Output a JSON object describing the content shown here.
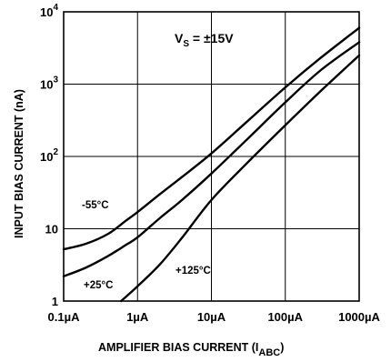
{
  "chart_data": {
    "type": "line",
    "xlabel": "AMPLIFIER BIAS CURRENT (I",
    "xlabel_sub": "ABC",
    "xlabel_close": ")",
    "ylabel": "INPUT BIAS CURRENT (nA)",
    "x_scale": "log",
    "y_scale": "log",
    "x_unit": "µA",
    "y_unit": "nA",
    "xlim": [
      0.1,
      1000
    ],
    "ylim": [
      1,
      10000
    ],
    "grid": true,
    "x_ticks": [
      {
        "value": 0.1,
        "label": "0.1µA"
      },
      {
        "value": 1,
        "label": "1µA"
      },
      {
        "value": 10,
        "label": "10µA"
      },
      {
        "value": 100,
        "label": "100µA"
      },
      {
        "value": 1000,
        "label": "1000µA"
      }
    ],
    "y_ticks": [
      {
        "value": 1,
        "base": "1",
        "exp": ""
      },
      {
        "value": 10,
        "base": "10",
        "exp": ""
      },
      {
        "value": 100,
        "base": "10",
        "exp": "2"
      },
      {
        "value": 1000,
        "base": "10",
        "exp": "3"
      },
      {
        "value": 10000,
        "base": "10",
        "exp": "4"
      }
    ],
    "annotation": {
      "main": "V",
      "sub": "S",
      "rest": " = ±15V"
    },
    "series": [
      {
        "name": "-55°C",
        "x": [
          0.1,
          0.2,
          0.4,
          0.7,
          1,
          2,
          4,
          10,
          30,
          100,
          300,
          1000
        ],
        "y": [
          5.2,
          6.2,
          8.5,
          13,
          17,
          30,
          52,
          110,
          300,
          900,
          2300,
          6000
        ]
      },
      {
        "name": "+25°C",
        "x": [
          0.1,
          0.2,
          0.4,
          0.7,
          1,
          2,
          4,
          10,
          30,
          100,
          300,
          1000
        ],
        "y": [
          2.2,
          2.9,
          4.2,
          6,
          7.6,
          14,
          25,
          58,
          170,
          560,
          1550,
          3800
        ]
      },
      {
        "name": "+125°C",
        "x": [
          0.6,
          1,
          2,
          4,
          10,
          30,
          100,
          300,
          1000
        ],
        "y": [
          1,
          1.6,
          3.2,
          7.5,
          25,
          80,
          270,
          800,
          2500
        ]
      }
    ]
  }
}
